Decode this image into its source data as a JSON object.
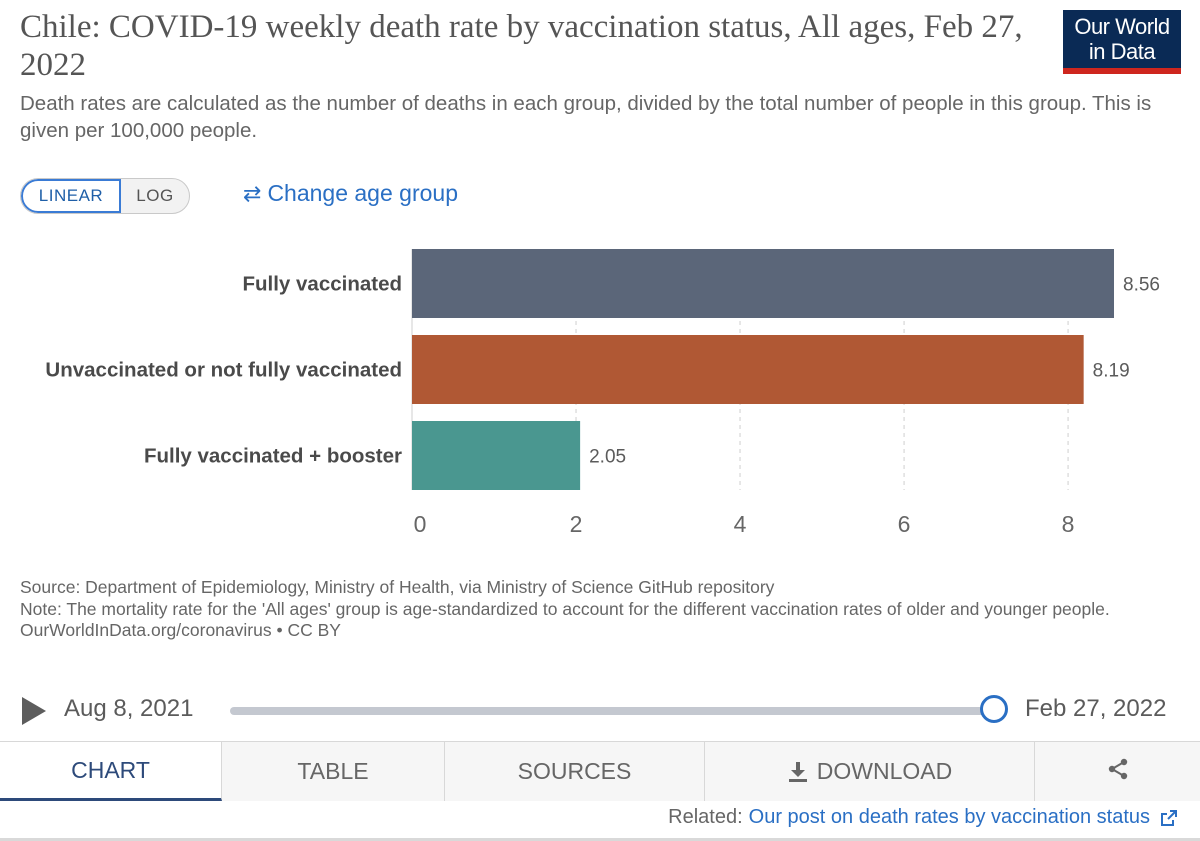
{
  "header": {
    "title": "Chile: COVID-19 weekly death rate by vaccination status, All ages, Feb 27, 2022",
    "subtitle": "Death rates are calculated as the number of deaths in each group, divided by the total number of people in this group. This is given per 100,000 people.",
    "logo_line1": "Our World",
    "logo_line2": "in Data"
  },
  "controls": {
    "linear_label": "LINEAR",
    "log_label": "LOG",
    "change_age_label": "Change age group"
  },
  "chart_data": {
    "type": "bar",
    "orientation": "horizontal",
    "categories": [
      "Fully vaccinated",
      "Unvaccinated or not fully vaccinated",
      "Fully vaccinated + booster"
    ],
    "values": [
      8.56,
      8.19,
      2.05
    ],
    "value_labels": [
      "8.56",
      "8.19",
      "2.05"
    ],
    "colors": [
      "#5b6679",
      "#b05834",
      "#4a9790"
    ],
    "xlim": [
      0,
      8.56
    ],
    "xticks": [
      0,
      2,
      4,
      6,
      8
    ],
    "xlabel": "",
    "ylabel": "",
    "grid": true,
    "title": "Chile: COVID-19 weekly death rate by vaccination status, All ages, Feb 27, 2022"
  },
  "footer": {
    "source": "Source: Department of Epidemiology, Ministry of Health, via Ministry of Science GitHub repository",
    "note": "Note: The mortality rate for the 'All ages' group is age-standardized to account for the different vaccination rates of older and younger people.",
    "license": "OurWorldInData.org/coronavirus • CC BY"
  },
  "timeline": {
    "start": "Aug 8, 2021",
    "end": "Feb 27, 2022"
  },
  "tabs": {
    "chart": "CHART",
    "table": "TABLE",
    "sources": "SOURCES",
    "download": "DOWNLOAD"
  },
  "related": {
    "prefix": "Related:",
    "link": "Our post on death rates by vaccination status"
  }
}
